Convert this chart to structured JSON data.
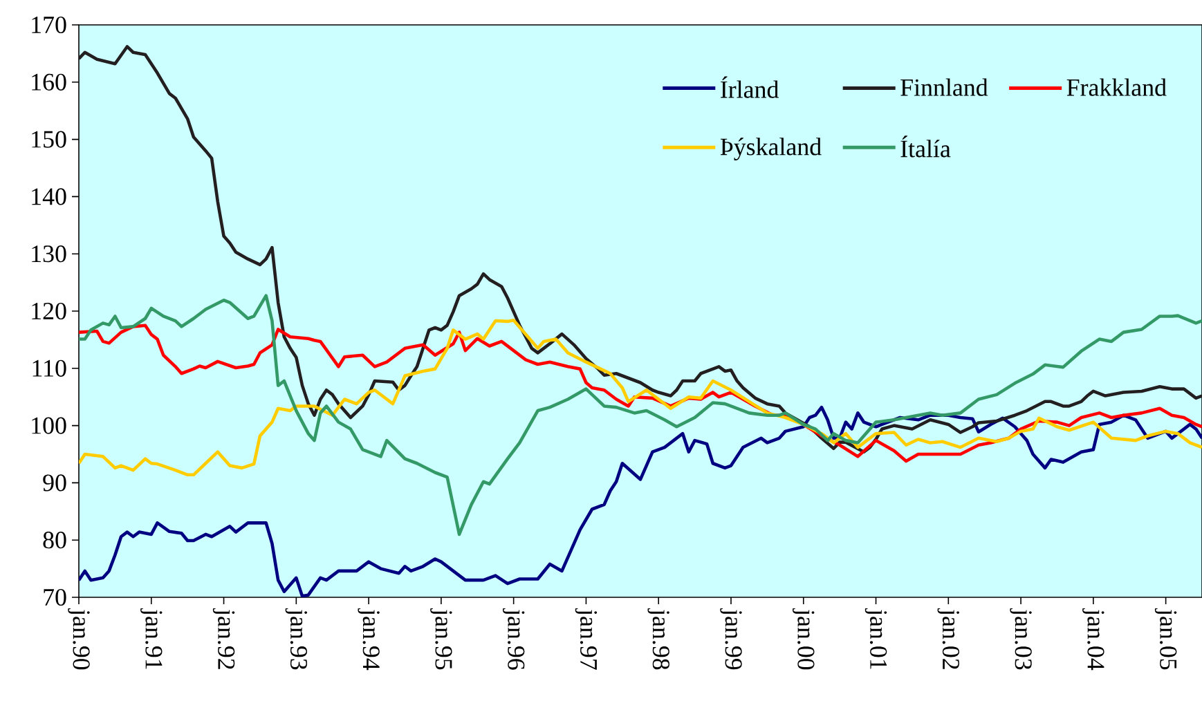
{
  "chart_data": {
    "type": "line",
    "xlim": [
      "1990-01",
      "2005-07"
    ],
    "ylim": [
      70,
      170
    ],
    "xticks": [
      {
        "value": "1990-01",
        "label": "jan.90"
      },
      {
        "value": "1991-01",
        "label": "jan.91"
      },
      {
        "value": "1992-01",
        "label": "jan.92"
      },
      {
        "value": "1993-01",
        "label": "jan.93"
      },
      {
        "value": "1994-01",
        "label": "jan.94"
      },
      {
        "value": "1995-01",
        "label": "jan.95"
      },
      {
        "value": "1996-01",
        "label": "jan.96"
      },
      {
        "value": "1997-01",
        "label": "jan.97"
      },
      {
        "value": "1998-01",
        "label": "jan.98"
      },
      {
        "value": "1999-01",
        "label": "jan.99"
      },
      {
        "value": "2000-01",
        "label": "jan.00"
      },
      {
        "value": "2001-01",
        "label": "jan.01"
      },
      {
        "value": "2002-01",
        "label": "jan.02"
      },
      {
        "value": "2003-01",
        "label": "jan.03"
      },
      {
        "value": "2004-01",
        "label": "jan.04"
      },
      {
        "value": "2005-01",
        "label": "jan.05"
      }
    ],
    "yticks": [
      70,
      80,
      90,
      100,
      110,
      120,
      130,
      140,
      150,
      160,
      170
    ],
    "grid": false,
    "legend": "top right",
    "line_style": "solid",
    "series": [
      {
        "name": "Írland",
        "color": "#000080",
        "x": [
          "1990-01",
          "1990-02",
          "1990-03",
          "1990-05",
          "1990-06",
          "1990-07",
          "1990-08",
          "1990-09",
          "1990-10",
          "1990-11",
          "1991-01",
          "1991-02",
          "1991-04",
          "1991-06",
          "1991-07",
          "1991-08",
          "1991-10",
          "1991-11",
          "1992-01",
          "1992-02",
          "1992-03",
          "1992-05",
          "1992-08",
          "1992-09",
          "1992-10",
          "1992-11",
          "1993-01",
          "1993-02",
          "1993-03",
          "1993-05",
          "1993-06",
          "1993-08",
          "1993-11",
          "1994-01",
          "1994-03",
          "1994-06",
          "1994-07",
          "1994-08",
          "1994-10",
          "1994-12",
          "1995-01",
          "1995-05",
          "1995-08",
          "1995-10",
          "1995-12",
          "1996-02",
          "1996-05",
          "1996-07",
          "1996-09",
          "1996-12",
          "1997-02",
          "1997-04",
          "1997-05",
          "1997-06",
          "1997-07",
          "1997-10",
          "1997-12",
          "1998-02",
          "1998-05",
          "1998-06",
          "1998-07",
          "1998-09",
          "1998-10",
          "1998-12",
          "1999-01",
          "1999-03",
          "1999-06",
          "1999-07",
          "1999-09",
          "1999-10",
          "2000-01",
          "2000-02",
          "2000-03",
          "2000-04",
          "2000-05",
          "2000-06",
          "2000-07",
          "2000-08",
          "2000-09",
          "2000-10",
          "2000-11",
          "2001-01",
          "2001-02",
          "2001-03",
          "2001-05",
          "2001-08",
          "2001-10",
          "2002-01",
          "2002-03",
          "2002-05",
          "2002-06",
          "2002-08",
          "2002-10",
          "2002-12",
          "2003-02",
          "2003-03",
          "2003-05",
          "2003-06",
          "2003-08",
          "2003-11",
          "2004-01",
          "2004-02",
          "2004-04",
          "2004-06",
          "2004-08",
          "2004-10",
          "2005-01",
          "2005-02",
          "2005-04",
          "2005-05",
          "2005-06",
          "2005-07"
        ],
        "values": [
          73,
          74.6,
          73,
          73.4,
          74.6,
          77.4,
          80.6,
          81.4,
          80.6,
          81.4,
          81,
          83,
          81.5,
          81.2,
          79.9,
          79.9,
          81,
          80.6,
          81.8,
          82.4,
          81.4,
          83,
          83,
          79.4,
          73,
          71,
          73.4,
          70.2,
          70.4,
          73.4,
          73,
          74.6,
          74.6,
          76.2,
          75,
          74.2,
          75.4,
          74.6,
          75.4,
          76.7,
          76.2,
          73,
          73,
          73.8,
          72.4,
          73.2,
          73.2,
          75.8,
          74.6,
          81.8,
          85.4,
          86.2,
          88.6,
          90.2,
          93.4,
          90.6,
          95.4,
          96.2,
          98.6,
          95.4,
          97.4,
          96.8,
          93.4,
          92.6,
          93,
          96.2,
          97.8,
          97,
          97.8,
          99,
          99.8,
          101.4,
          101.8,
          103.2,
          101,
          97.8,
          97.8,
          100.6,
          99.4,
          102.2,
          100.6,
          99.8,
          100.2,
          100.6,
          101.4,
          101,
          101.8,
          101.8,
          101.4,
          101.2,
          98.9,
          100.2,
          101.3,
          99.8,
          97.4,
          95,
          92.6,
          94.1,
          93.6,
          95.4,
          95.8,
          100.2,
          100.6,
          101.8,
          101,
          97.8,
          99,
          97.8,
          99.4,
          100.2,
          99.4,
          97.8
        ]
      },
      {
        "name": "Finnland",
        "color": "#231f20",
        "x": [
          "1990-01",
          "1990-02",
          "1990-04",
          "1990-07",
          "1990-09",
          "1990-10",
          "1990-12",
          "1991-02",
          "1991-04",
          "1991-05",
          "1991-07",
          "1991-08",
          "1991-10",
          "1991-11",
          "1991-12",
          "1992-01",
          "1992-02",
          "1992-03",
          "1992-05",
          "1992-07",
          "1992-08",
          "1992-09",
          "1992-10",
          "1992-11",
          "1992-12",
          "1993-01",
          "1993-02",
          "1993-03",
          "1993-04",
          "1993-05",
          "1993-06",
          "1993-07",
          "1993-08",
          "1993-10",
          "1993-12",
          "1994-01",
          "1994-02",
          "1994-05",
          "1994-06",
          "1994-07",
          "1994-08",
          "1994-09",
          "1994-10",
          "1994-11",
          "1994-12",
          "1995-01",
          "1995-02",
          "1995-03",
          "1995-04",
          "1995-06",
          "1995-07",
          "1995-08",
          "1995-09",
          "1995-11",
          "1995-12",
          "1996-01",
          "1996-02",
          "1996-03",
          "1996-04",
          "1996-05",
          "1996-07",
          "1996-09",
          "1996-11",
          "1997-01",
          "1997-03",
          "1997-04",
          "1997-06",
          "1997-08",
          "1997-10",
          "1997-12",
          "1998-01",
          "1998-03",
          "1998-04",
          "1998-05",
          "1998-07",
          "1998-08",
          "1998-11",
          "1998-12",
          "1999-01",
          "1999-02",
          "1999-03",
          "1999-05",
          "1999-07",
          "1999-09",
          "1999-10",
          "1999-12",
          "2000-02",
          "2000-04",
          "2000-06",
          "2000-07",
          "2000-08",
          "2000-11",
          "2000-12",
          "2001-01",
          "2001-02",
          "2001-04",
          "2001-07",
          "2001-10",
          "2002-01",
          "2002-03",
          "2002-05",
          "2002-06",
          "2002-09",
          "2002-12",
          "2003-02",
          "2003-05",
          "2003-06",
          "2003-08",
          "2003-09",
          "2003-11",
          "2003-12",
          "2004-01",
          "2004-03",
          "2004-06",
          "2004-09",
          "2004-12",
          "2005-02",
          "2005-04",
          "2005-06",
          "2005-07"
        ],
        "values": [
          164.1,
          165.2,
          164,
          163.2,
          166.2,
          165.2,
          164.8,
          161.6,
          158,
          157.2,
          153.6,
          150.4,
          148,
          146.7,
          139.1,
          133.1,
          131.9,
          130.3,
          129.1,
          128.1,
          129.1,
          131.1,
          121.5,
          115.5,
          113.5,
          111.9,
          107,
          103.8,
          101.8,
          104.6,
          106.2,
          105.4,
          103.8,
          101.4,
          103.4,
          105.4,
          107.8,
          107.6,
          106.2,
          107,
          108.7,
          110.3,
          113.5,
          116.7,
          117.1,
          116.7,
          117.5,
          119.9,
          122.7,
          123.9,
          124.7,
          126.5,
          125.5,
          124.3,
          122.3,
          119.9,
          117.5,
          115.5,
          113.5,
          112.7,
          114.3,
          116,
          114.1,
          111.7,
          109.9,
          108.8,
          109.1,
          108.3,
          107.5,
          106.2,
          105.8,
          105.2,
          106.2,
          107.8,
          107.8,
          109.1,
          110.3,
          109.5,
          109.7,
          107.8,
          106.6,
          104.8,
          103.8,
          103.4,
          102.2,
          101,
          99.8,
          97.8,
          96,
          97.1,
          97.1,
          95.4,
          96.2,
          97.6,
          99.4,
          100,
          99.4,
          101,
          100.2,
          98.8,
          99.8,
          100.5,
          100.8,
          101.8,
          102.6,
          104.2,
          104.2,
          103.4,
          103.4,
          104.2,
          105.2,
          106,
          105.2,
          105.8,
          106,
          106.8,
          106.4,
          106.4,
          104.8,
          105.2
        ]
      },
      {
        "name": "Frakkland",
        "color": "#ff0000",
        "x": [
          "1990-01",
          "1990-04",
          "1990-05",
          "1990-06",
          "1990-08",
          "1990-10",
          "1990-12",
          "1991-01",
          "1991-02",
          "1991-03",
          "1991-05",
          "1991-06",
          "1991-08",
          "1991-09",
          "1991-10",
          "1991-12",
          "1992-03",
          "1992-05",
          "1992-06",
          "1992-07",
          "1992-09",
          "1992-10",
          "1992-12",
          "1993-03",
          "1993-04",
          "1993-05",
          "1993-08",
          "1993-09",
          "1993-12",
          "1994-02",
          "1994-04",
          "1994-07",
          "1994-10",
          "1994-12",
          "1995-03",
          "1995-04",
          "1995-05",
          "1995-07",
          "1995-09",
          "1995-11",
          "1996-01",
          "1996-03",
          "1996-05",
          "1996-07",
          "1996-10",
          "1996-12",
          "1997-01",
          "1997-02",
          "1997-04",
          "1997-06",
          "1997-08",
          "1997-09",
          "1997-12",
          "1998-03",
          "1998-06",
          "1998-08",
          "1998-10",
          "1998-11",
          "1999-01",
          "1999-05",
          "1999-08",
          "1999-10",
          "2000-01",
          "2000-04",
          "2000-07",
          "2000-10",
          "2001-01",
          "2001-04",
          "2001-06",
          "2001-08",
          "2001-10",
          "2001-12",
          "2002-03",
          "2002-06",
          "2002-08",
          "2002-11",
          "2003-01",
          "2003-04",
          "2003-07",
          "2003-09",
          "2003-11",
          "2004-02",
          "2004-04",
          "2004-06",
          "2004-09",
          "2004-12",
          "2005-02",
          "2005-04",
          "2005-06",
          "2005-07"
        ],
        "values": [
          116.3,
          116.5,
          114.7,
          114.4,
          116.3,
          117.3,
          117.5,
          115.9,
          115.1,
          112.3,
          110.3,
          109.1,
          109.9,
          110.4,
          110.1,
          111.2,
          110.1,
          110.4,
          110.7,
          112.7,
          114.1,
          116.8,
          115.5,
          115.2,
          114.9,
          114.7,
          110.3,
          112,
          112.3,
          110.3,
          111.1,
          113.5,
          114.1,
          112.3,
          114.3,
          116.3,
          113.1,
          115.2,
          113.9,
          114.7,
          113.1,
          111.5,
          110.7,
          111.1,
          110.3,
          109.9,
          107.5,
          106.6,
          106.2,
          104.6,
          103.4,
          105,
          104.8,
          103.4,
          104.8,
          104.6,
          105.8,
          105,
          105.8,
          103.4,
          101.8,
          101.8,
          100.2,
          98.2,
          96.6,
          94.6,
          97.4,
          95.6,
          93.8,
          95,
          95,
          95,
          95,
          96.6,
          97,
          97.8,
          99.4,
          100.8,
          100.6,
          100,
          101.4,
          102.2,
          101.4,
          101.8,
          102.2,
          103,
          101.8,
          101.4,
          100.2,
          99.8
        ]
      },
      {
        "name": "Þýskaland",
        "color": "#ffcc00",
        "x": [
          "1990-01",
          "1990-02",
          "1990-05",
          "1990-07",
          "1990-08",
          "1990-10",
          "1990-12",
          "1991-01",
          "1991-02",
          "1991-05",
          "1991-07",
          "1991-08",
          "1991-10",
          "1991-12",
          "1992-02",
          "1992-04",
          "1992-06",
          "1992-07",
          "1992-09",
          "1992-10",
          "1992-12",
          "1993-01",
          "1993-04",
          "1993-07",
          "1993-09",
          "1993-11",
          "1994-01",
          "1994-02",
          "1994-05",
          "1994-07",
          "1994-10",
          "1994-12",
          "1995-02",
          "1995-03",
          "1995-05",
          "1995-07",
          "1995-08",
          "1995-10",
          "1995-12",
          "1996-01",
          "1996-05",
          "1996-06",
          "1996-08",
          "1996-10",
          "1997-01",
          "1997-04",
          "1997-05",
          "1997-07",
          "1997-08",
          "1997-11",
          "1998-03",
          "1998-06",
          "1998-08",
          "1998-10",
          "1999-01",
          "1999-04",
          "1999-07",
          "1999-10",
          "2000-01",
          "2000-04",
          "2000-06",
          "2000-08",
          "2000-10",
          "2001-01",
          "2001-04",
          "2001-06",
          "2001-08",
          "2001-10",
          "2001-12",
          "2002-03",
          "2002-06",
          "2002-09",
          "2002-11",
          "2003-01",
          "2003-03",
          "2003-04",
          "2003-07",
          "2003-09",
          "2004-01",
          "2004-04",
          "2004-08",
          "2004-10",
          "2005-01",
          "2005-03",
          "2005-05",
          "2005-07"
        ],
        "values": [
          93.4,
          95,
          94.6,
          92.6,
          93,
          92.2,
          94.2,
          93.4,
          93.3,
          92.2,
          91.4,
          91.4,
          93.4,
          95.4,
          93,
          92.6,
          93.3,
          98.2,
          100.6,
          103,
          102.6,
          103.4,
          103.4,
          101.8,
          104.6,
          103.8,
          105.8,
          106.2,
          103.8,
          108.7,
          109.5,
          109.9,
          113.5,
          116.7,
          115.1,
          116,
          115.1,
          118.3,
          118.2,
          118.4,
          113.5,
          114.7,
          115.1,
          112.7,
          111.1,
          109.6,
          109.1,
          106.6,
          104.2,
          106.2,
          103,
          105,
          104.8,
          107.8,
          106.2,
          104.2,
          102.2,
          101.4,
          100.2,
          98.6,
          97,
          98.6,
          96.2,
          98.6,
          98.8,
          96.6,
          97.6,
          97,
          97.2,
          96.2,
          97.8,
          97.2,
          97.8,
          99,
          99.4,
          101.3,
          99.8,
          99.2,
          100.6,
          97.8,
          97.4,
          98.2,
          99,
          98.6,
          97,
          96.2
        ]
      },
      {
        "name": "Ítalía",
        "color": "#339966",
        "x": [
          "1990-01",
          "1990-02",
          "1990-03",
          "1990-05",
          "1990-06",
          "1990-07",
          "1990-08",
          "1990-10",
          "1990-12",
          "1991-01",
          "1991-03",
          "1991-05",
          "1991-06",
          "1991-08",
          "1991-10",
          "1992-01",
          "1992-02",
          "1992-05",
          "1992-06",
          "1992-08",
          "1992-09",
          "1992-10",
          "1992-11",
          "1993-01",
          "1993-03",
          "1993-04",
          "1993-05",
          "1993-06",
          "1993-08",
          "1993-10",
          "1993-12",
          "1994-03",
          "1994-04",
          "1994-07",
          "1994-09",
          "1994-12",
          "1995-02",
          "1995-04",
          "1995-06",
          "1995-08",
          "1995-09",
          "1995-12",
          "1996-02",
          "1996-05",
          "1996-07",
          "1996-10",
          "1997-01",
          "1997-04",
          "1997-06",
          "1997-09",
          "1997-11",
          "1998-02",
          "1998-04",
          "1998-07",
          "1998-10",
          "1998-12",
          "1999-04",
          "1999-07",
          "1999-09",
          "1999-10",
          "2000-01",
          "2000-03",
          "2000-05",
          "2000-06",
          "2000-08",
          "2000-10",
          "2001-01",
          "2001-04",
          "2001-10",
          "2001-12",
          "2002-03",
          "2002-06",
          "2002-09",
          "2002-12",
          "2003-03",
          "2003-05",
          "2003-08",
          "2003-11",
          "2004-02",
          "2004-04",
          "2004-06",
          "2004-09",
          "2004-12",
          "2005-02",
          "2005-03",
          "2005-06",
          "2005-07"
        ],
        "values": [
          115.1,
          115.1,
          116.7,
          117.9,
          117.6,
          119.1,
          117.1,
          117.3,
          118.7,
          120.5,
          119.1,
          118.3,
          117.3,
          118.7,
          120.3,
          121.9,
          121.5,
          118.7,
          119.1,
          122.7,
          118.3,
          107,
          107.8,
          102.6,
          98.6,
          97.4,
          102.2,
          103.4,
          100.6,
          99.4,
          95.8,
          94.6,
          97.4,
          94.2,
          93.4,
          91.8,
          91,
          81,
          86.2,
          90.2,
          89.8,
          94.2,
          97,
          102.6,
          103.2,
          104.6,
          106.4,
          103.4,
          103.2,
          102.2,
          102.6,
          101,
          99.8,
          101.4,
          104,
          103.8,
          102.2,
          101.8,
          101.8,
          102.2,
          100.2,
          99.4,
          97.4,
          98.6,
          97.4,
          97,
          100.6,
          101,
          102.2,
          101.8,
          102.2,
          104.6,
          105.4,
          107.4,
          109,
          110.6,
          110.2,
          113,
          115.1,
          114.7,
          116.3,
          116.8,
          119.1,
          119.1,
          119.2,
          117.9,
          118.3
        ]
      }
    ]
  }
}
